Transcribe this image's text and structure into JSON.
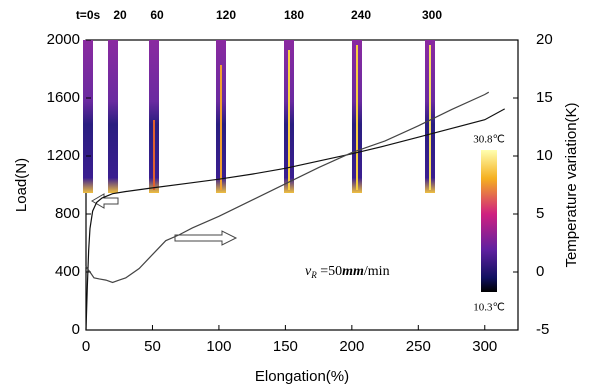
{
  "chart_data": {
    "type": "line",
    "xlabel": "Elongation(%)",
    "ylabel": "Load(N)",
    "y2label": "Temperature variation(K)",
    "xlim": [
      0,
      325
    ],
    "xticks": [
      0,
      50,
      100,
      150,
      200,
      250,
      300
    ],
    "ylim": [
      0,
      2000
    ],
    "yticks": [
      0,
      400,
      800,
      1200,
      1600,
      2000
    ],
    "y2lim": [
      -5,
      20
    ],
    "y2ticks": [
      -5,
      0,
      5,
      10,
      15,
      20
    ],
    "series": [
      {
        "color": "#111111",
        "x": [
          0,
          1,
          2,
          3,
          5,
          8,
          12,
          20,
          30,
          50,
          75,
          100,
          125,
          150,
          175,
          200,
          225,
          250,
          275,
          300,
          315
        ],
        "values": [
          0,
          300,
          550,
          700,
          820,
          880,
          910,
          940,
          955,
          980,
          1010,
          1040,
          1075,
          1115,
          1165,
          1215,
          1270,
          1330,
          1390,
          1450,
          1525
        ]
      },
      {
        "color": "#444444",
        "axis": "y2",
        "x": [
          0,
          1,
          3,
          6,
          10,
          15,
          20,
          25,
          30,
          40,
          50,
          60,
          70,
          80,
          100,
          125,
          150,
          175,
          200,
          225,
          250,
          275,
          300,
          303
        ],
        "values": [
          0.5,
          0.3,
          0,
          -0.5,
          -0.6,
          -0.7,
          -0.9,
          -0.7,
          -0.5,
          0.3,
          1.5,
          2.7,
          3.2,
          3.8,
          4.8,
          6.2,
          7.6,
          9,
          10.3,
          11.3,
          12.6,
          14,
          15.3,
          15.5
        ]
      }
    ],
    "thermal_labels": [
      "t=0s",
      "20",
      "60",
      "120",
      "180",
      "240",
      "300"
    ],
    "colorbar": {
      "max": "30.8℃",
      "min": "10.3℃"
    },
    "annotation": [
      "v",
      "R",
      " =50",
      "mm",
      "/min"
    ]
  }
}
